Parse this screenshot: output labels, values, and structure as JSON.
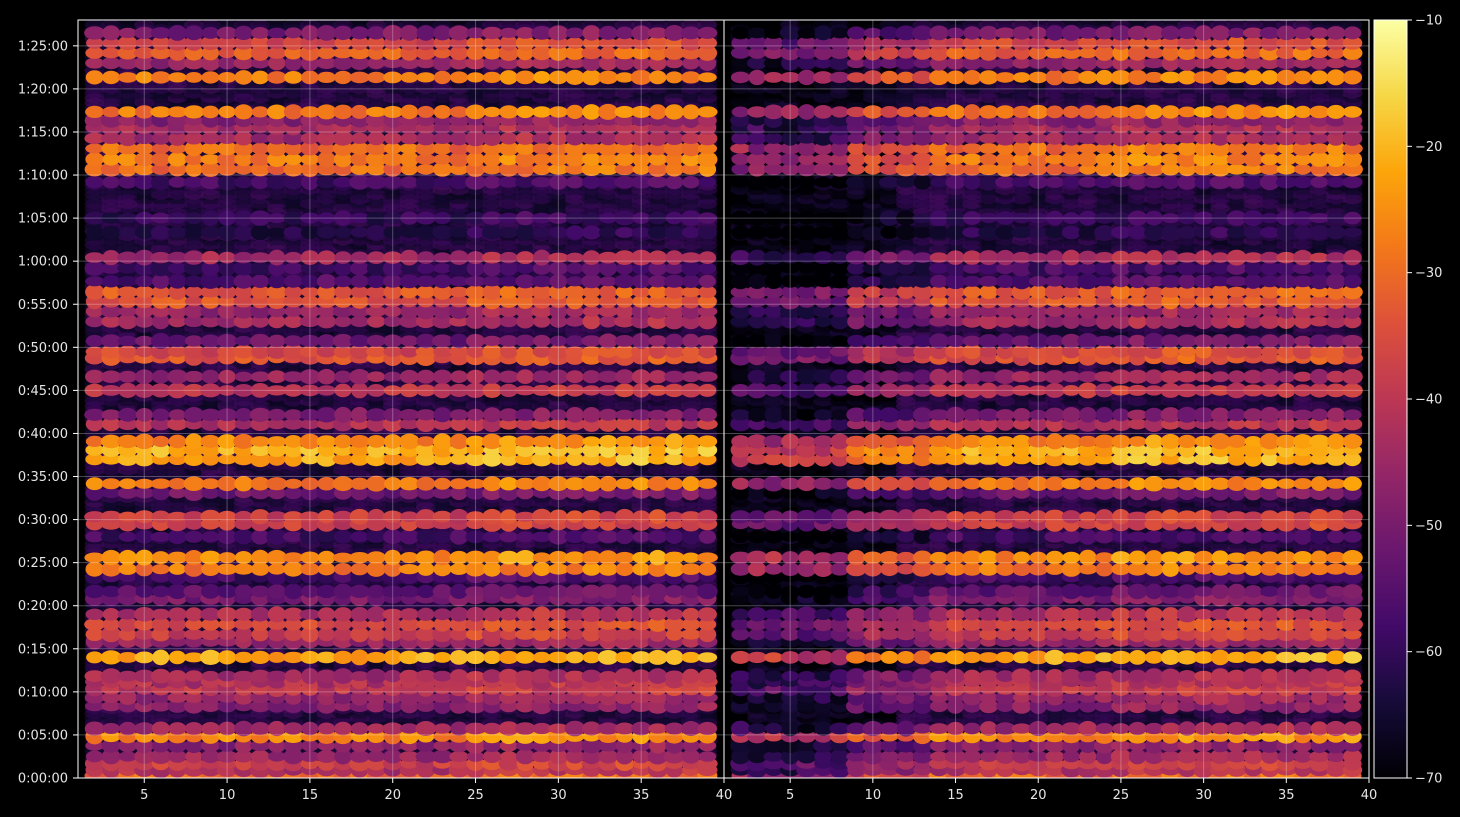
{
  "chart_data": {
    "type": "heatmap",
    "title": "",
    "xlabel": "",
    "ylabel": "",
    "background": "#000000",
    "colormap": "inferno",
    "panels": [
      {
        "name": "",
        "xlim": [
          1,
          40
        ],
        "x_ticks": [
          "5",
          "10",
          "15",
          "20",
          "25",
          "30",
          "35",
          "40"
        ],
        "x_tick_values": [
          5,
          10,
          15,
          20,
          25,
          30,
          35,
          40
        ],
        "grid": true
      },
      {
        "name": "",
        "xlim": [
          1,
          40
        ],
        "x_ticks": [
          "5",
          "10",
          "15",
          "20",
          "25",
          "30",
          "35",
          "40"
        ],
        "x_tick_values": [
          5,
          10,
          15,
          20,
          25,
          30,
          35,
          40
        ],
        "grid": true
      }
    ],
    "y_ticks": [
      "0:00:00",
      "0:05:00",
      "0:10:00",
      "0:15:00",
      "0:20:00",
      "0:25:00",
      "0:30:00",
      "0:35:00",
      "0:40:00",
      "0:45:00",
      "0:50:00",
      "0:55:00",
      "1:00:00",
      "1:05:00",
      "1:10:00",
      "1:15:00",
      "1:20:00",
      "1:25:00"
    ],
    "y_tick_values_seconds": [
      0,
      300,
      600,
      900,
      1200,
      1500,
      1800,
      2100,
      2400,
      2700,
      3000,
      3300,
      3600,
      3900,
      4200,
      4500,
      4800,
      5100
    ],
    "ylim_seconds": [
      0,
      5280
    ],
    "colorbar": {
      "range": [
        -70,
        -10
      ],
      "ticks": [
        "−10",
        "−20",
        "−30",
        "−40",
        "−50",
        "−60",
        "−70"
      ],
      "tick_values": [
        -10,
        -20,
        -30,
        -40,
        -50,
        -60,
        -70
      ]
    },
    "bands_seconds": [
      {
        "t": 15,
        "level": -30
      },
      {
        "t": 55,
        "level": -42
      },
      {
        "t": 100,
        "level": -38
      },
      {
        "t": 150,
        "level": -45
      },
      {
        "t": 225,
        "level": -48
      },
      {
        "t": 290,
        "level": -26
      },
      {
        "t": 345,
        "level": -45
      },
      {
        "t": 500,
        "level": -48
      },
      {
        "t": 560,
        "level": -46
      },
      {
        "t": 620,
        "level": -40
      },
      {
        "t": 670,
        "level": -42
      },
      {
        "t": 710,
        "level": -44
      },
      {
        "t": 840,
        "level": -22
      },
      {
        "t": 950,
        "level": -46
      },
      {
        "t": 1000,
        "level": -38
      },
      {
        "t": 1070,
        "level": -36
      },
      {
        "t": 1140,
        "level": -42
      },
      {
        "t": 1250,
        "level": -50
      },
      {
        "t": 1300,
        "level": -54
      },
      {
        "t": 1400,
        "level": -58
      },
      {
        "t": 1455,
        "level": -28
      },
      {
        "t": 1535,
        "level": -26
      },
      {
        "t": 1680,
        "level": -58
      },
      {
        "t": 1770,
        "level": -38
      },
      {
        "t": 1820,
        "level": -38
      },
      {
        "t": 1985,
        "level": -52
      },
      {
        "t": 2050,
        "level": -28
      },
      {
        "t": 2220,
        "level": -22
      },
      {
        "t": 2285,
        "level": -21
      },
      {
        "t": 2345,
        "level": -26
      },
      {
        "t": 2465,
        "level": -42
      },
      {
        "t": 2530,
        "level": -50
      },
      {
        "t": 2700,
        "level": -40
      },
      {
        "t": 2795,
        "level": -46
      },
      {
        "t": 2925,
        "level": -34
      },
      {
        "t": 2970,
        "level": -36
      },
      {
        "t": 3045,
        "level": -52
      },
      {
        "t": 3180,
        "level": -44
      },
      {
        "t": 3250,
        "level": -46
      },
      {
        "t": 3320,
        "level": -34
      },
      {
        "t": 3385,
        "level": -33
      },
      {
        "t": 3460,
        "level": -56
      },
      {
        "t": 3550,
        "level": -58
      },
      {
        "t": 3625,
        "level": -44
      },
      {
        "t": 3800,
        "level": -62
      },
      {
        "t": 3900,
        "level": -60
      },
      {
        "t": 4150,
        "level": -58
      },
      {
        "t": 4240,
        "level": -30
      },
      {
        "t": 4310,
        "level": -28
      },
      {
        "t": 4385,
        "level": -30
      },
      {
        "t": 4455,
        "level": -44
      },
      {
        "t": 4530,
        "level": -44
      },
      {
        "t": 4580,
        "level": -48
      },
      {
        "t": 4640,
        "level": -28
      },
      {
        "t": 4880,
        "level": -28
      },
      {
        "t": 4980,
        "level": -46
      },
      {
        "t": 5050,
        "level": -32
      },
      {
        "t": 5120,
        "level": -36
      },
      {
        "t": 5190,
        "level": -50
      }
    ]
  }
}
